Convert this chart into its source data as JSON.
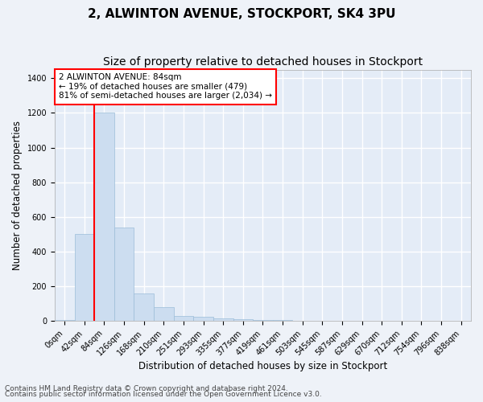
{
  "title": "2, ALWINTON AVENUE, STOCKPORT, SK4 3PU",
  "subtitle": "Size of property relative to detached houses in Stockport",
  "xlabel": "Distribution of detached houses by size in Stockport",
  "ylabel": "Number of detached properties",
  "footnote1": "Contains HM Land Registry data © Crown copyright and database right 2024.",
  "footnote2": "Contains public sector information licensed under the Open Government Licence v3.0.",
  "bin_labels": [
    "0sqm",
    "42sqm",
    "84sqm",
    "126sqm",
    "168sqm",
    "210sqm",
    "251sqm",
    "293sqm",
    "335sqm",
    "377sqm",
    "419sqm",
    "461sqm",
    "503sqm",
    "545sqm",
    "587sqm",
    "629sqm",
    "670sqm",
    "712sqm",
    "754sqm",
    "796sqm",
    "838sqm"
  ],
  "bar_values": [
    5,
    500,
    1200,
    540,
    160,
    80,
    30,
    25,
    15,
    10,
    7,
    4,
    2,
    1,
    1,
    0,
    0,
    0,
    0,
    0,
    0
  ],
  "bar_color": "#ccddf0",
  "bar_edge_color": "#9bbdd8",
  "red_line_index": 2,
  "annotation_text_line1": "2 ALWINTON AVENUE: 84sqm",
  "annotation_text_line2": "← 19% of detached houses are smaller (479)",
  "annotation_text_line3": "81% of semi-detached houses are larger (2,034) →",
  "annotation_box_color": "white",
  "annotation_box_edge": "red",
  "ylim": [
    0,
    1450
  ],
  "yticks": [
    0,
    200,
    400,
    600,
    800,
    1000,
    1200,
    1400
  ],
  "background_color": "#eef2f8",
  "plot_bg_color": "#e4ecf7",
  "grid_color": "white",
  "title_fontsize": 11,
  "subtitle_fontsize": 10,
  "axis_label_fontsize": 8.5,
  "tick_fontsize": 7,
  "footnote_fontsize": 6.5,
  "annotation_fontsize": 7.5
}
